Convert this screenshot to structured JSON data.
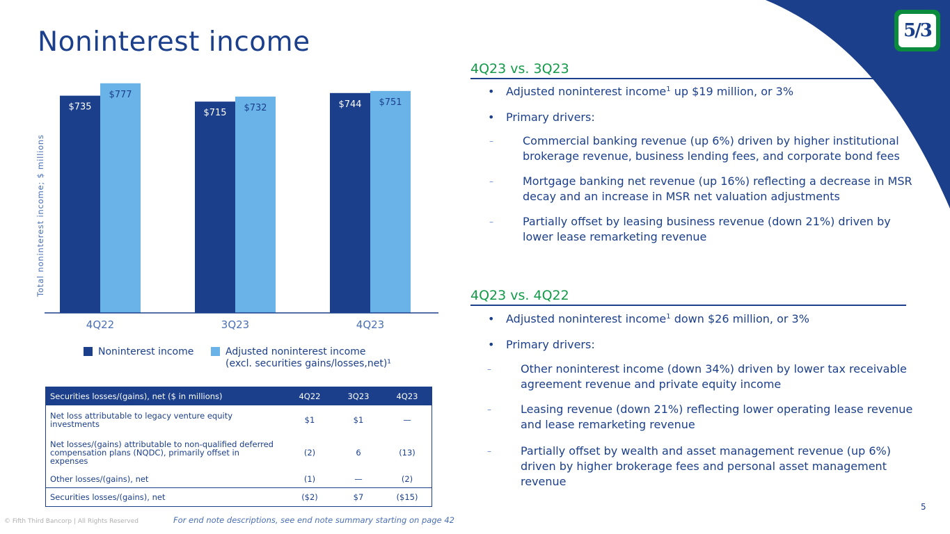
{
  "title": "Noninterest income",
  "logo_text": "5/3",
  "colors": {
    "navy": "#1b3f8b",
    "light_blue": "#6ab3e8",
    "green": "#129a48"
  },
  "chart_data": {
    "type": "bar",
    "categories": [
      "4Q22",
      "3Q23",
      "4Q23"
    ],
    "series": [
      {
        "name": "Noninterest income",
        "values": [
          735,
          715,
          744
        ],
        "labels": [
          "$735",
          "$715",
          "$744"
        ],
        "color": "#1b3f8b"
      },
      {
        "name": "Adjusted noninterest income",
        "values": [
          777,
          732,
          751
        ],
        "labels": [
          "$777",
          "$732",
          "$751"
        ],
        "color": "#6ab3e8"
      }
    ],
    "ylabel": "Total noninterest income; $ millions",
    "ylim": [
      0,
      800
    ]
  },
  "legend": {
    "items": [
      {
        "label": "Noninterest income",
        "label2": ""
      },
      {
        "label": "Adjusted noninterest income",
        "label2": "(excl. securities gains/losses,net)¹"
      }
    ]
  },
  "table": {
    "headers": [
      "Securities losses/(gains), net ($ in millions)",
      "4Q22",
      "3Q23",
      "4Q23"
    ],
    "rows": [
      {
        "label_line1": "Net loss attributable to legacy venture equity",
        "label_line2": "investments",
        "label_line3": "",
        "values": [
          "$1",
          "$1",
          "—"
        ]
      },
      {
        "label_line1": "Net losses/(gains) attributable to non-qualified deferred",
        "label_line2": "compensation plans (NQDC), primarily offset in",
        "label_line3": "expenses",
        "values": [
          "(2)",
          "6",
          "(13)"
        ]
      },
      {
        "label_line1": "Other losses/(gains), net",
        "label_line2": "",
        "label_line3": "",
        "values": [
          "(1)",
          "—",
          "(2)"
        ]
      }
    ],
    "total": {
      "label": "Securities losses/(gains), net",
      "values": [
        "($2)",
        "$7",
        "($15)"
      ]
    }
  },
  "section1": {
    "title": "4Q23 vs. 3Q23",
    "bullet1": {
      "marker": "•",
      "before": "Adjusted noninterest income",
      "sup": "1",
      "after": " up $19 million, or 3%"
    },
    "bullet2": {
      "marker": "•",
      "text": "Primary drivers:"
    },
    "subs": [
      {
        "marker": "–",
        "line1": "Commercial banking revenue (up 6%) driven by higher institutional",
        "line2": "brokerage revenue, business lending fees, and corporate bond fees"
      },
      {
        "marker": "–",
        "line1": "Mortgage banking net revenue (up 16%) reflecting a decrease in MSR",
        "line2": "decay and an increase in MSR net valuation adjustments"
      },
      {
        "marker": "–",
        "line1": "Partially offset by leasing business revenue (down 21%) driven by",
        "line2": "lower lease remarketing revenue"
      }
    ]
  },
  "section2": {
    "title": "4Q23 vs. 4Q22",
    "bullet1": {
      "marker": "•",
      "before": "Adjusted noninterest income",
      "sup": "1",
      "after": " down $26 million, or 3%"
    },
    "bullet2": {
      "marker": "•",
      "text": "Primary drivers:"
    },
    "subs": [
      {
        "marker": "–",
        "line1": "Other noninterest income (down 34%) driven by lower tax receivable",
        "line2": "agreement revenue and private equity income",
        "line3": ""
      },
      {
        "marker": "–",
        "line1": "Leasing revenue (down 21%) reflecting lower operating lease revenue",
        "line2": "and lease remarketing revenue",
        "line3": ""
      },
      {
        "marker": "–",
        "line1": "Partially offset by wealth and asset management revenue (up 6%)",
        "line2": "driven by higher brokerage fees and personal asset management",
        "line3": "revenue"
      }
    ]
  },
  "footer": {
    "copyright": "© Fifth Third Bancorp | All Rights Reserved",
    "endnote": "For end note descriptions, see end note summary starting on page 42",
    "page": "5"
  }
}
